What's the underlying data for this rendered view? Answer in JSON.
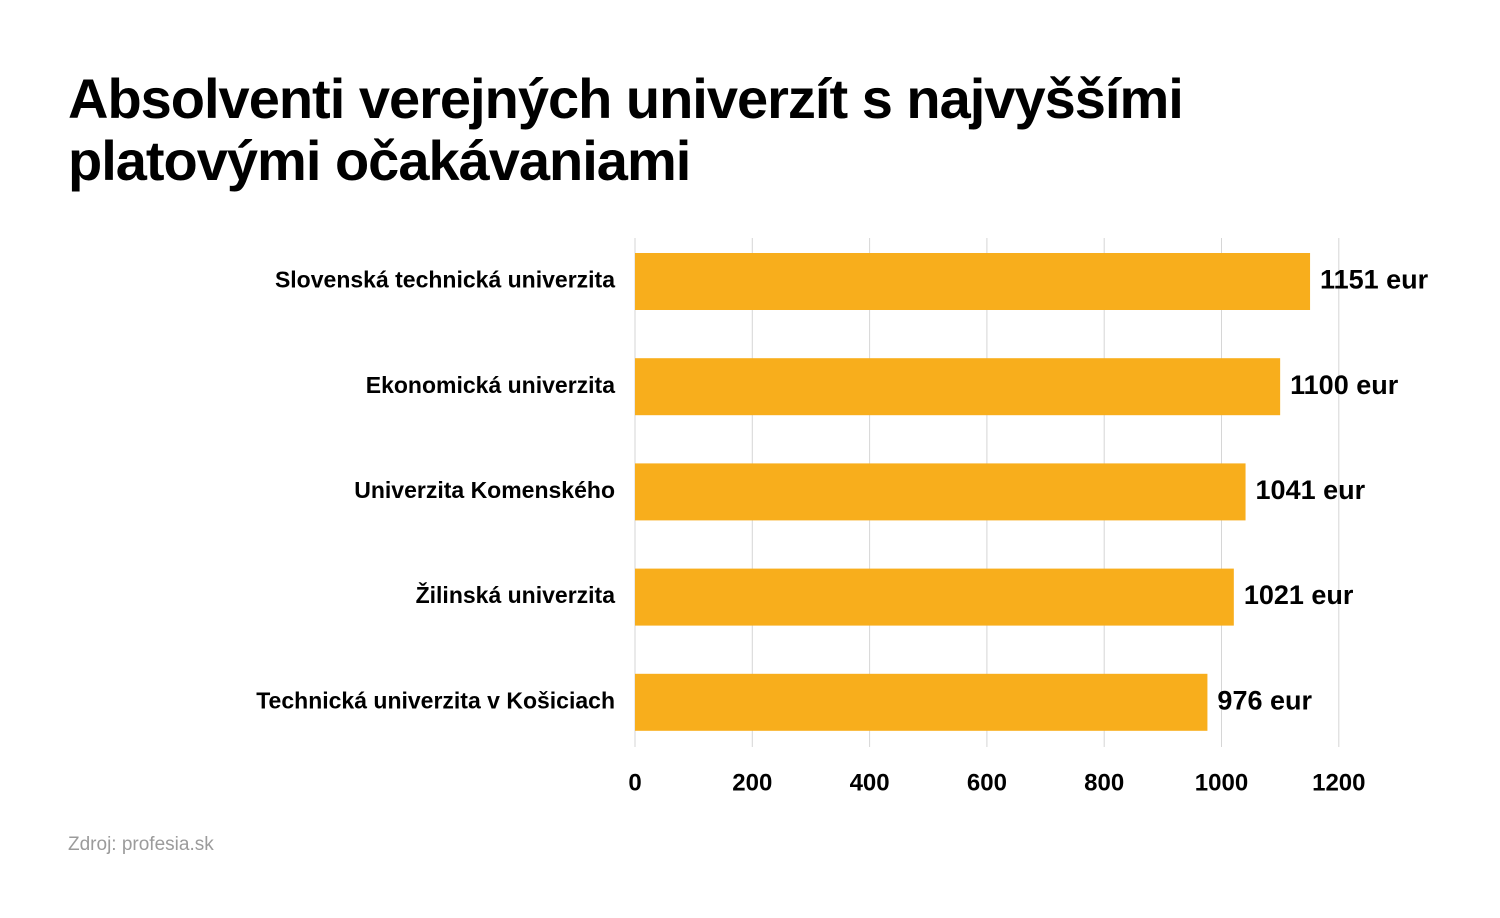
{
  "title": "Absolventi verejných univerzít s najvyššími platovými očakávaniami",
  "source": "Zdroj: profesia.sk",
  "colors": {
    "bar": "#f8ae1c",
    "grid": "#d6d6d6",
    "text": "#000000",
    "source": "#9b9b9b"
  },
  "chart_data": {
    "type": "bar",
    "orientation": "horizontal",
    "categories": [
      "Slovenská technická univerzita",
      "Ekonomická univerzita",
      "Univerzita Komenského",
      "Žilinská univerzita",
      "Technická univerzita v Košiciach"
    ],
    "values": [
      1151,
      1100,
      1041,
      1021,
      976
    ],
    "value_labels": [
      "1151 eur",
      "1100 eur",
      "1041 eur",
      "1021 eur",
      "976 eur"
    ],
    "xlim": [
      0,
      1200
    ],
    "xticks": [
      0,
      200,
      400,
      600,
      800,
      1000,
      1200
    ],
    "xtick_labels": [
      "0",
      "200",
      "400",
      "600",
      "800",
      "1000",
      "1200"
    ],
    "grid": true
  }
}
